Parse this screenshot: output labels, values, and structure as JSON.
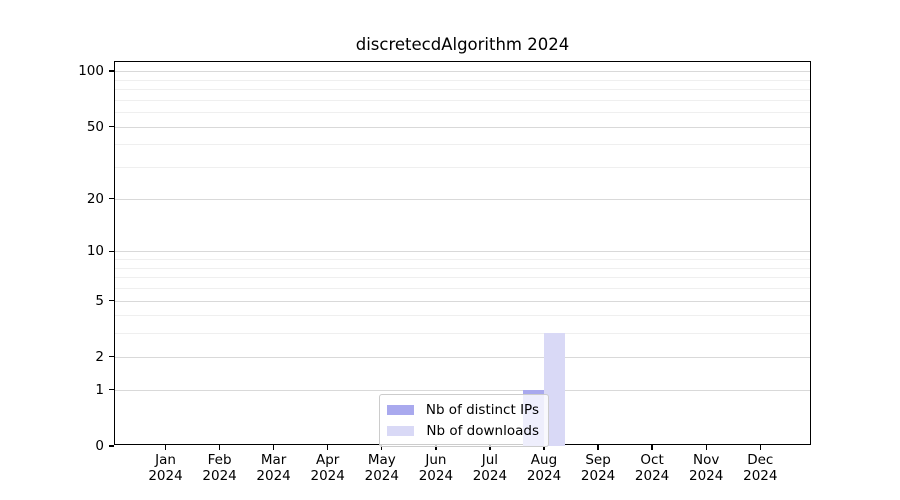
{
  "title": "discretecdAlgorithm 2024",
  "colors": {
    "bar_distinct_ips": "#a9a9ee",
    "bar_downloads": "#d9d9f6",
    "grid_major": "#d9d9d9",
    "grid_minor": "#efefef",
    "axis_spine": "#000000",
    "text": "#000000",
    "legend_border": "#cccccc"
  },
  "legend": {
    "items": [
      {
        "label": "Nb of distinct IPs",
        "color": "#a9a9ee"
      },
      {
        "label": "Nb of downloads",
        "color": "#d9d9f6"
      }
    ]
  },
  "chart_data": {
    "type": "bar",
    "title": "discretecdAlgorithm 2024",
    "categories": [
      "Jan 2024",
      "Feb 2024",
      "Mar 2024",
      "Apr 2024",
      "May 2024",
      "Jun 2024",
      "Jul 2024",
      "Aug 2024",
      "Sep 2024",
      "Oct 2024",
      "Nov 2024",
      "Dec 2024"
    ],
    "series": [
      {
        "name": "Nb of distinct IPs",
        "color": "#a9a9ee",
        "values": [
          0,
          0,
          0,
          0,
          0,
          0,
          0,
          1,
          0,
          0,
          0,
          0
        ]
      },
      {
        "name": "Nb of downloads",
        "color": "#d9d9f6",
        "values": [
          0,
          0,
          0,
          0,
          0,
          0,
          0,
          3,
          0,
          0,
          0,
          0
        ]
      }
    ],
    "xlabel": "",
    "ylabel": "",
    "yscale": "log1p",
    "ylim": [
      0,
      112
    ],
    "yticks": [
      0,
      1,
      2,
      5,
      10,
      20,
      50,
      100
    ],
    "minor_yticks": [
      3,
      4,
      6,
      7,
      8,
      9,
      30,
      40,
      60,
      70,
      80,
      90
    ],
    "grid": true,
    "legend_position": "lower center"
  }
}
